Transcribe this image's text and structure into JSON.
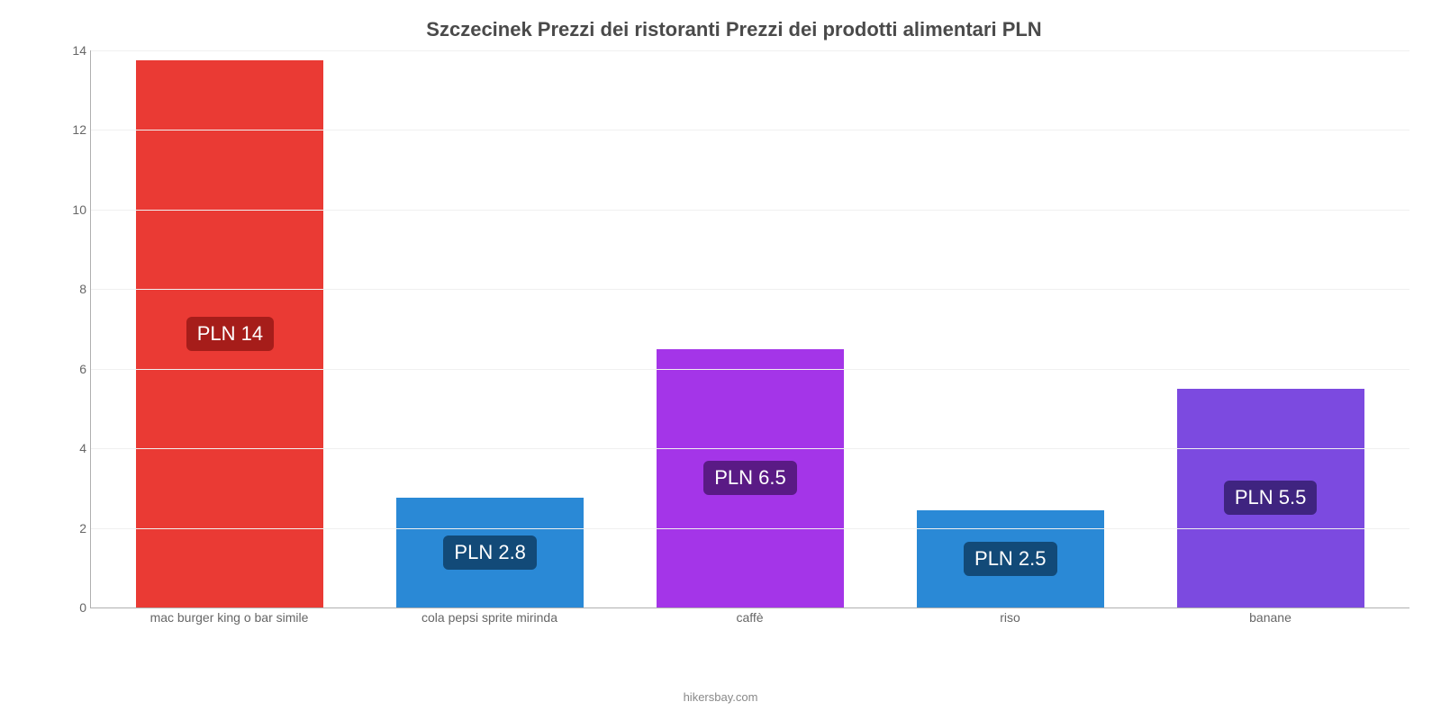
{
  "chart": {
    "type": "bar",
    "title": "Szczecinek Prezzi dei ristoranti Prezzi dei prodotti alimentari PLN",
    "title_fontsize": 22,
    "title_color": "#4a4a4a",
    "background_color": "#ffffff",
    "grid_color": "#f0f0f0",
    "axis_color": "#b0b0b0",
    "label_color": "#666666",
    "label_fontsize": 14,
    "value_label_fontsize": 22,
    "bar_width": 0.72,
    "y": {
      "min": 0,
      "max": 14,
      "ticks": [
        0,
        2,
        4,
        6,
        8,
        10,
        12,
        14
      ]
    },
    "bars": [
      {
        "category": "mac burger king o bar simile",
        "value": 13.75,
        "label": "PLN 14",
        "color": "#ea3a34",
        "badge_bg": "#a61d1a"
      },
      {
        "category": "cola pepsi sprite mirinda",
        "value": 2.75,
        "label": "PLN 2.8",
        "color": "#2a89d6",
        "badge_bg": "#124a78"
      },
      {
        "category": "caffè",
        "value": 6.5,
        "label": "PLN 6.5",
        "color": "#a435e8",
        "badge_bg": "#5a1a85"
      },
      {
        "category": "riso",
        "value": 2.45,
        "label": "PLN 2.5",
        "color": "#2a89d6",
        "badge_bg": "#124a78"
      },
      {
        "category": "banane",
        "value": 5.5,
        "label": "PLN 5.5",
        "color": "#7c4ae0",
        "badge_bg": "#3f2480"
      }
    ],
    "source": "hikersbay.com",
    "source_fontsize": 13,
    "source_color": "#888888"
  }
}
